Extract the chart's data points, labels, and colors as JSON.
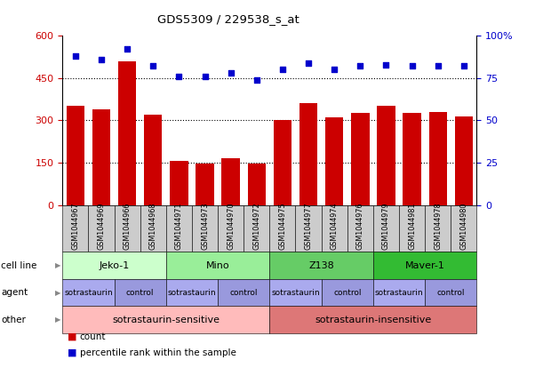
{
  "title": "GDS5309 / 229538_s_at",
  "samples": [
    "GSM1044967",
    "GSM1044969",
    "GSM1044966",
    "GSM1044968",
    "GSM1044971",
    "GSM1044973",
    "GSM1044970",
    "GSM1044972",
    "GSM1044975",
    "GSM1044977",
    "GSM1044974",
    "GSM1044976",
    "GSM1044979",
    "GSM1044981",
    "GSM1044978",
    "GSM1044980"
  ],
  "counts": [
    350,
    340,
    510,
    320,
    155,
    148,
    165,
    148,
    302,
    360,
    312,
    325,
    350,
    325,
    330,
    315
  ],
  "percentiles": [
    88,
    86,
    92,
    82,
    76,
    76,
    78,
    74,
    80,
    84,
    80,
    82,
    83,
    82,
    82,
    82
  ],
  "ylim_left": [
    0,
    600
  ],
  "ylim_right": [
    0,
    100
  ],
  "yticks_left": [
    0,
    150,
    300,
    450,
    600
  ],
  "yticks_right": [
    0,
    25,
    50,
    75,
    100
  ],
  "bar_color": "#cc0000",
  "dot_color": "#0000cc",
  "cell_lines": [
    {
      "label": "Jeko-1",
      "start": 0,
      "end": 4,
      "color": "#ccffcc"
    },
    {
      "label": "Mino",
      "start": 4,
      "end": 8,
      "color": "#99ee99"
    },
    {
      "label": "Z138",
      "start": 8,
      "end": 12,
      "color": "#66cc66"
    },
    {
      "label": "Maver-1",
      "start": 12,
      "end": 16,
      "color": "#33bb33"
    }
  ],
  "agents": [
    {
      "label": "sotrastaurin",
      "start": 0,
      "end": 2,
      "color": "#aaaaee"
    },
    {
      "label": "control",
      "start": 2,
      "end": 4,
      "color": "#9999dd"
    },
    {
      "label": "sotrastaurin",
      "start": 4,
      "end": 6,
      "color": "#aaaaee"
    },
    {
      "label": "control",
      "start": 6,
      "end": 8,
      "color": "#9999dd"
    },
    {
      "label": "sotrastaurin",
      "start": 8,
      "end": 10,
      "color": "#aaaaee"
    },
    {
      "label": "control",
      "start": 10,
      "end": 12,
      "color": "#9999dd"
    },
    {
      "label": "sotrastaurin",
      "start": 12,
      "end": 14,
      "color": "#aaaaee"
    },
    {
      "label": "control",
      "start": 14,
      "end": 16,
      "color": "#9999dd"
    }
  ],
  "others": [
    {
      "label": "sotrastaurin-sensitive",
      "start": 0,
      "end": 8,
      "color": "#ffbbbb"
    },
    {
      "label": "sotrastaurin-insensitive",
      "start": 8,
      "end": 16,
      "color": "#dd7777"
    }
  ],
  "row_labels": [
    "cell line",
    "agent",
    "other"
  ],
  "legend_count": "count",
  "legend_percentile": "percentile rank within the sample",
  "tick_bg_color": "#cccccc",
  "axis_left_color": "#cc0000",
  "axis_right_color": "#0000cc"
}
